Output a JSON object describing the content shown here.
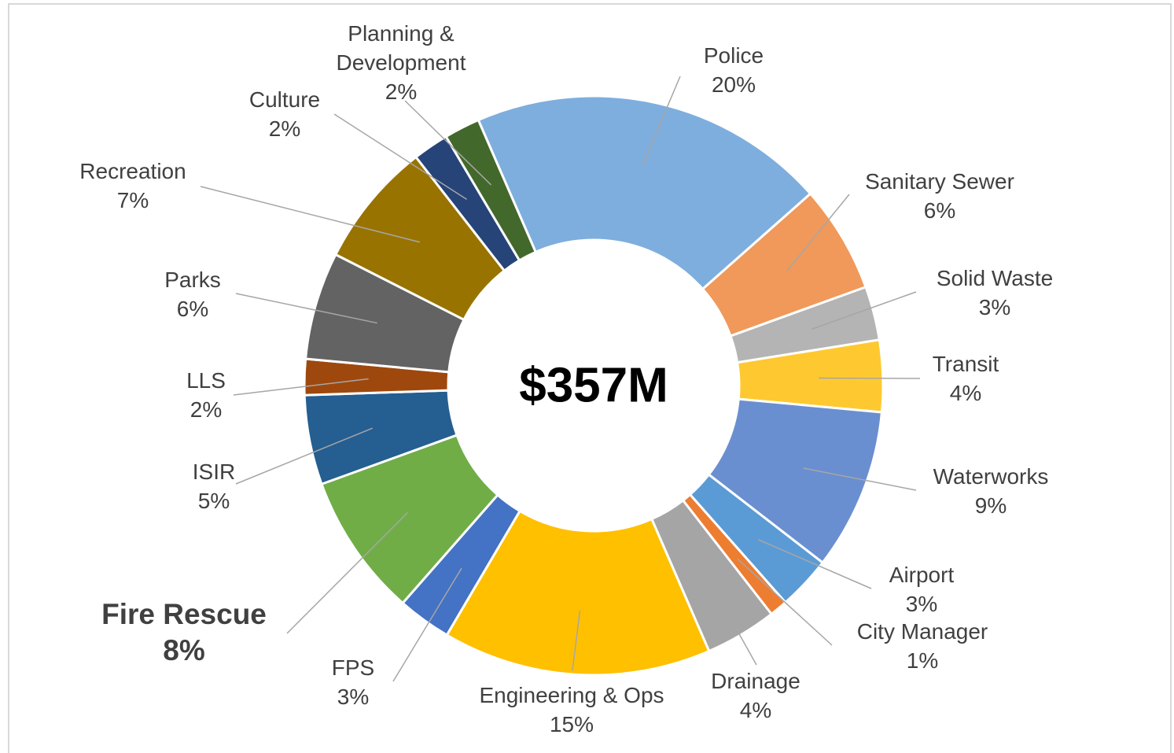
{
  "chart_data": {
    "type": "donut",
    "center_label": "$357M",
    "categories": [
      "Police",
      "Sanitary Sewer",
      "Solid Waste",
      "Transit",
      "Waterworks",
      "Airport",
      "City Manager",
      "Drainage",
      "Engineering & Ops",
      "FPS",
      "Fire Rescue",
      "ISIR",
      "LLS",
      "Parks",
      "Recreation",
      "Culture",
      "Planning & Development"
    ],
    "values": [
      20,
      6,
      3,
      4,
      9,
      3,
      1,
      4,
      15,
      3,
      8,
      5,
      2,
      6,
      7,
      2,
      2
    ],
    "value_labels": [
      "20%",
      "6%",
      "3%",
      "4%",
      "9%",
      "3%",
      "1%",
      "4%",
      "15%",
      "3%",
      "8%",
      "5%",
      "2%",
      "6%",
      "7%",
      "2%",
      "2%"
    ],
    "colors": [
      "#7eaedd",
      "#f0995a",
      "#b4b4b4",
      "#fec930",
      "#6a8fd0",
      "#5b9bd5",
      "#ed7d31",
      "#a5a5a5",
      "#ffc000",
      "#4472c4",
      "#70ad47",
      "#255e91",
      "#9e480e",
      "#636363",
      "#997300",
      "#264478",
      "#43682b"
    ],
    "highlight": "Fire Rescue"
  }
}
